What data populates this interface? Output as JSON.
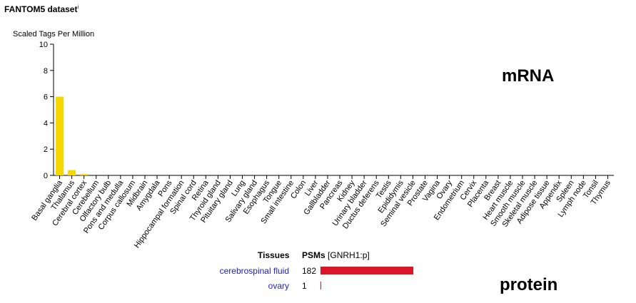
{
  "header": {
    "title": "FANTOM5 dataset",
    "title_sup": "i"
  },
  "labels": {
    "mrna": "mRNA",
    "protein": "protein"
  },
  "chart_data": {
    "type": "bar",
    "title": "FANTOM5 dataset",
    "ylabel": "Scaled Tags Per Million",
    "ylim": [
      0,
      10
    ],
    "yticks": [
      0,
      2,
      4,
      6,
      8,
      10
    ],
    "bar_color": "#f5d800",
    "categories": [
      "Basal ganglia",
      "Thalamus",
      "Cerebral cortex",
      "Cerebellum",
      "Olfactory bulb",
      "Pons and medulla",
      "Corpus callosum",
      "Midbrain",
      "Amygdala",
      "Pons",
      "Hippocampal formation",
      "Spinal cord",
      "Retina",
      "Thyroid gland",
      "Pituitary gland",
      "Lung",
      "Salivary gland",
      "Esophagus",
      "Tongue",
      "Small intestine",
      "Colon",
      "Liver",
      "Gallbladder",
      "Pancreas",
      "Kidney",
      "Urinary bladder",
      "Ductus deferens",
      "Testis",
      "Epididymis",
      "Seminal vesicle",
      "Prostate",
      "Vagina",
      "Ovary",
      "Endometrium",
      "Cervix",
      "Placenta",
      "Breast",
      "Heart muscle",
      "Smooth muscle",
      "Skeletal muscle",
      "Adipose tissue",
      "Appendix",
      "Spleen",
      "Lymph node",
      "Tonsil",
      "Thymus"
    ],
    "values": [
      6.0,
      0.4,
      0.1,
      0,
      0,
      0,
      0,
      0,
      0,
      0,
      0,
      0,
      0,
      0,
      0,
      0,
      0,
      0,
      0,
      0,
      0,
      0,
      0,
      0,
      0,
      0,
      0,
      0,
      0,
      0,
      0,
      0,
      0,
      0,
      0,
      0,
      0,
      0,
      0,
      0,
      0,
      0,
      0,
      0,
      0,
      0
    ]
  },
  "protein_table": {
    "col_tissues": "Tissues",
    "col_psms": "PSMs",
    "col_psms_sub": "[GNRH1:p]",
    "bar_color": "#dc1428",
    "max_value": 182,
    "rows": [
      {
        "tissue": "cerebrospinal fluid",
        "psms": 182
      },
      {
        "tissue": "ovary",
        "psms": 1
      }
    ]
  }
}
